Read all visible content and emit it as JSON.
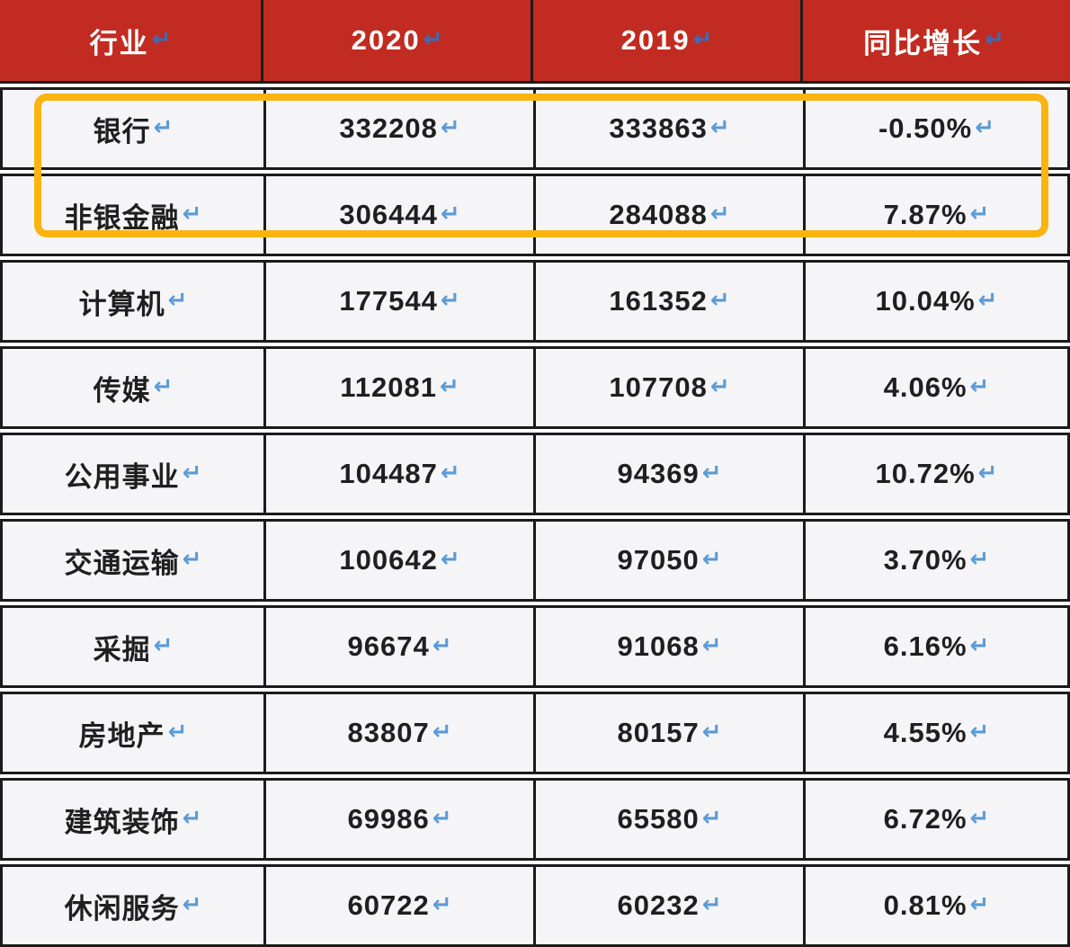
{
  "table": {
    "columns": [
      "行业",
      "2020",
      "2019",
      "同比增长"
    ],
    "rows": [
      {
        "industry": "银行",
        "y2020": "332208",
        "y2019": "333863",
        "growth": "-0.50%"
      },
      {
        "industry": "非银金融",
        "y2020": "306444",
        "y2019": "284088",
        "growth": "7.87%"
      },
      {
        "industry": "计算机",
        "y2020": "177544",
        "y2019": "161352",
        "growth": "10.04%"
      },
      {
        "industry": "传媒",
        "y2020": "112081",
        "y2019": "107708",
        "growth": "4.06%"
      },
      {
        "industry": "公用事业",
        "y2020": "104487",
        "y2019": "94369",
        "growth": "10.72%"
      },
      {
        "industry": "交通运输",
        "y2020": "100642",
        "y2019": "97050",
        "growth": "3.70%"
      },
      {
        "industry": "采掘",
        "y2020": "96674",
        "y2019": "91068",
        "growth": "6.16%"
      },
      {
        "industry": "房地产",
        "y2020": "83807",
        "y2019": "80157",
        "growth": "4.55%"
      },
      {
        "industry": "建筑装饰",
        "y2020": "69986",
        "y2019": "65580",
        "growth": "6.72%"
      },
      {
        "industry": "休闲服务",
        "y2020": "60722",
        "y2019": "60232",
        "growth": "0.81%"
      }
    ],
    "paragraph_mark": "↵"
  },
  "highlight": {
    "highlighted_industries": [
      "银行",
      "非银金融"
    ]
  },
  "colors": {
    "header_bg": "#c22b21",
    "header_text": "#ffffff",
    "cell_bg": "#f5f5f7",
    "border": "#1b1b1b",
    "highlight": "#f9b410",
    "mark_header": "#3f6ab5",
    "mark_body": "#5b9bd5",
    "body_text": "#1f1f1f"
  }
}
